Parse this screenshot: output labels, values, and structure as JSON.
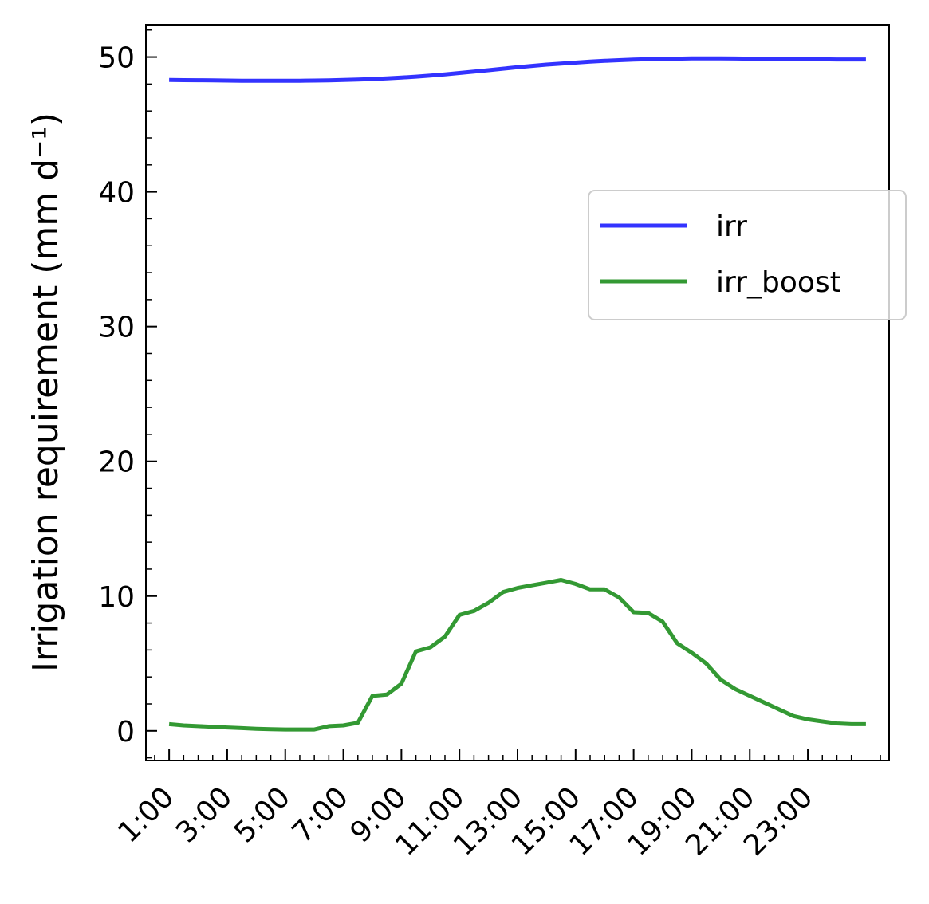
{
  "chart_data": {
    "type": "line",
    "title": "",
    "xlabel": "",
    "ylabel": "Irrigation requirement (mm d⁻¹)",
    "x_hours": [
      1,
      1.5,
      2,
      2.5,
      3,
      3.5,
      4,
      4.5,
      5,
      5.5,
      6,
      6.5,
      7,
      7.5,
      8,
      8.5,
      9,
      9.5,
      10,
      10.5,
      11,
      11.5,
      12,
      12.5,
      13,
      13.5,
      14,
      14.5,
      15,
      15.5,
      16,
      16.5,
      17,
      17.5,
      18,
      18.5,
      19,
      19.5,
      20,
      20.5,
      21,
      21.5,
      22,
      22.5,
      23,
      23.5,
      24,
      24.5,
      25
    ],
    "xlim": [
      0.2,
      25.8
    ],
    "ylim": [
      -2.2,
      52.4
    ],
    "x_ticks": [
      "1:00",
      "3:00",
      "5:00",
      "7:00",
      "9:00",
      "11:00",
      "13:00",
      "15:00",
      "17:00",
      "19:00",
      "21:00",
      "23:00"
    ],
    "x_tick_hours": [
      1,
      3,
      5,
      7,
      9,
      11,
      13,
      15,
      17,
      19,
      21,
      23
    ],
    "y_ticks": [
      "0",
      "10",
      "20",
      "30",
      "40",
      "50"
    ],
    "y_tick_values": [
      0,
      10,
      20,
      30,
      40,
      50
    ],
    "series": [
      {
        "name": "irr",
        "color": "#3333ff",
        "values": [
          48.3,
          48.29,
          48.28,
          48.27,
          48.26,
          48.25,
          48.25,
          48.25,
          48.25,
          48.25,
          48.26,
          48.27,
          48.3,
          48.33,
          48.37,
          48.42,
          48.48,
          48.55,
          48.63,
          48.72,
          48.82,
          48.92,
          49.03,
          49.14,
          49.25,
          49.35,
          49.44,
          49.52,
          49.59,
          49.66,
          49.72,
          49.77,
          49.81,
          49.84,
          49.86,
          49.88,
          49.9,
          49.9,
          49.9,
          49.89,
          49.88,
          49.87,
          49.86,
          49.85,
          49.84,
          49.83,
          49.82,
          49.82,
          49.82
        ]
      },
      {
        "name": "irr_boost",
        "color": "#339933",
        "values": [
          0.5,
          0.4,
          0.35,
          0.3,
          0.25,
          0.2,
          0.15,
          0.12,
          0.1,
          0.1,
          0.1,
          0.35,
          0.4,
          0.6,
          2.6,
          2.7,
          3.5,
          5.9,
          6.2,
          7.0,
          8.6,
          8.9,
          9.5,
          10.3,
          10.6,
          10.8,
          11.0,
          11.2,
          10.9,
          10.5,
          10.5,
          9.9,
          8.8,
          8.75,
          8.1,
          6.5,
          5.8,
          5.0,
          3.8,
          3.1,
          2.6,
          2.1,
          1.6,
          1.1,
          0.85,
          0.7,
          0.55,
          0.5,
          0.5
        ]
      }
    ],
    "legend": {
      "entries": [
        "irr",
        "irr_boost"
      ],
      "placement": "center-right"
    },
    "grid": false
  }
}
